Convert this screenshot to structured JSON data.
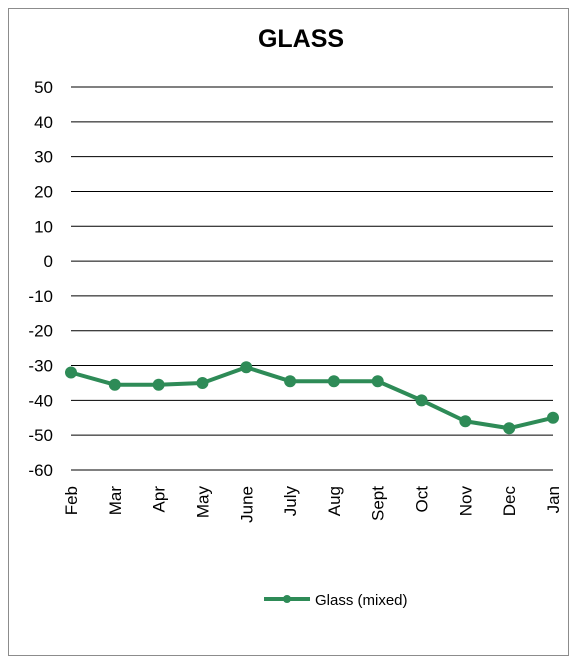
{
  "chart_data": {
    "type": "line",
    "title": "GLASS",
    "xlabel": "",
    "ylabel": "",
    "categories": [
      "Feb",
      "Mar",
      "Apr",
      "May",
      "June",
      "July",
      "Aug",
      "Sept",
      "Oct",
      "Nov",
      "Dec",
      "Jan"
    ],
    "series": [
      {
        "name": "Glass (mixed)",
        "color": "#2e8b57",
        "values": [
          -32,
          -35.5,
          -35.5,
          -35,
          -30.5,
          -34.5,
          -34.5,
          -34.5,
          -40,
          -46,
          -48,
          -45
        ]
      }
    ],
    "ylim": [
      -60,
      50
    ],
    "yticks": [
      50,
      40,
      30,
      20,
      10,
      0,
      -10,
      -20,
      -30,
      -40,
      -50,
      -60
    ],
    "grid": true,
    "legend": "bottom"
  }
}
